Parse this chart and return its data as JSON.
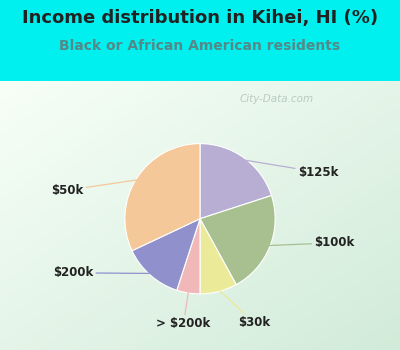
{
  "title": "Income distribution in Kihei, HI (%)",
  "subtitle": "Black or African American residents",
  "labels": [
    "$125k",
    "$100k",
    "$30k",
    "> $200k",
    "$200k",
    "$50k"
  ],
  "sizes": [
    20,
    22,
    8,
    5,
    13,
    32
  ],
  "colors": [
    "#b8aed4",
    "#a8c090",
    "#eaea98",
    "#f0b8b8",
    "#9090cc",
    "#f5c89a"
  ],
  "startangle": 90,
  "bg_color": "#00f0f0",
  "title_color": "#222222",
  "subtitle_color": "#558888",
  "watermark": "City-Data.com",
  "label_fontsize": 8.5,
  "title_fontsize": 13,
  "subtitle_fontsize": 10,
  "chart_bg_colors": [
    "#f5fdf8",
    "#ceeede"
  ]
}
